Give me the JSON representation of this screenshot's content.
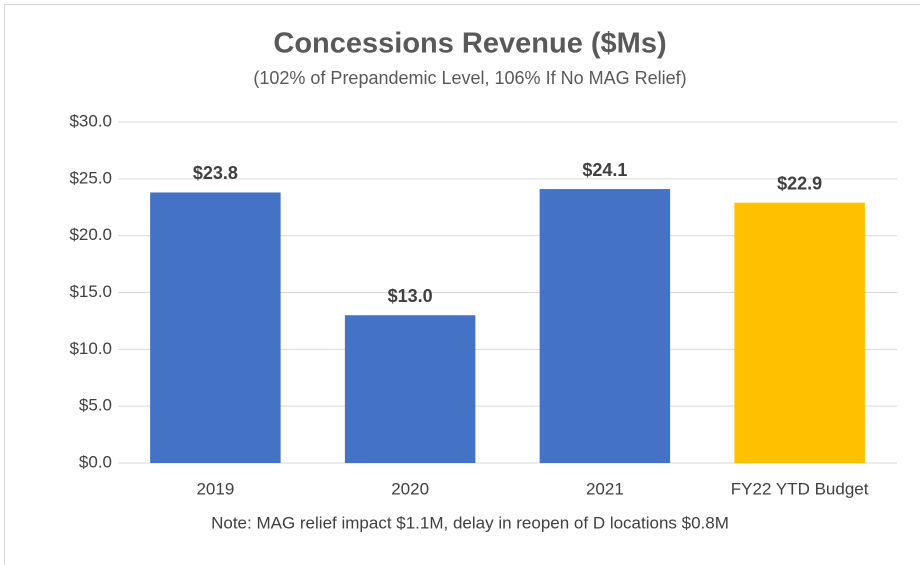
{
  "chart_data": {
    "type": "bar",
    "title": "Concessions Revenue ($Ms)",
    "subtitle": "(102% of Prepandemic Level, 106% If No MAG Relief)",
    "annotation": "Note: MAG relief impact $1.1M, delay in reopen of D locations $0.8M",
    "categories": [
      "2019",
      "2020",
      "2021",
      "FY22 YTD Budget"
    ],
    "values": [
      23.8,
      13.0,
      24.1,
      22.9
    ],
    "value_labels": [
      "$23.8",
      "$13.0",
      "$24.1",
      "$22.9"
    ],
    "colors": [
      "#4472c4",
      "#4472c4",
      "#4472c4",
      "#ffc000"
    ],
    "ylim": [
      0,
      30
    ],
    "yticks": [
      {
        "value": 0,
        "label": "$0.0"
      },
      {
        "value": 5,
        "label": "$5.0"
      },
      {
        "value": 10,
        "label": "$10.0"
      },
      {
        "value": 15,
        "label": "$15.0"
      },
      {
        "value": 20,
        "label": "$20.0"
      },
      {
        "value": 25,
        "label": "$25.0"
      },
      {
        "value": 30,
        "label": "$30.0"
      }
    ],
    "grid": true
  }
}
